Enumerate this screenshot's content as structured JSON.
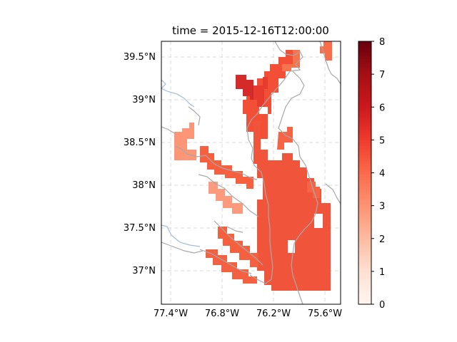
{
  "chart_data": {
    "type": "heatmap",
    "title": "time = 2015-12-16T12:00:00",
    "map": {
      "x_ticks": [
        "77.4°W",
        "76.8°W",
        "76.2°W",
        "75.6°W"
      ],
      "y_ticks": [
        "39.5°N",
        "39°N",
        "38.5°N",
        "38°N",
        "37.5°N",
        "37°N"
      ],
      "gridlines": true
    },
    "colorbar": {
      "cmap": "Reds",
      "range": [
        0,
        8
      ],
      "ticks": [
        "0",
        "1",
        "2",
        "3",
        "4",
        "5",
        "6",
        "7",
        "8"
      ],
      "orientation": "vertical",
      "position": "right"
    },
    "field": {
      "dominant_value_range": [
        3.5,
        4.5
      ],
      "max_value_near_upper_bay": 5.5,
      "min_value_tributaries": 2.0
    },
    "colors": {
      "coastline": "#aaaaaa",
      "rivers": "#9dbddc",
      "gridline": "#d8d8d8",
      "field_main": "#f0553c",
      "field_high": "#d2232a",
      "field_low": "#fb9a7d"
    }
  }
}
